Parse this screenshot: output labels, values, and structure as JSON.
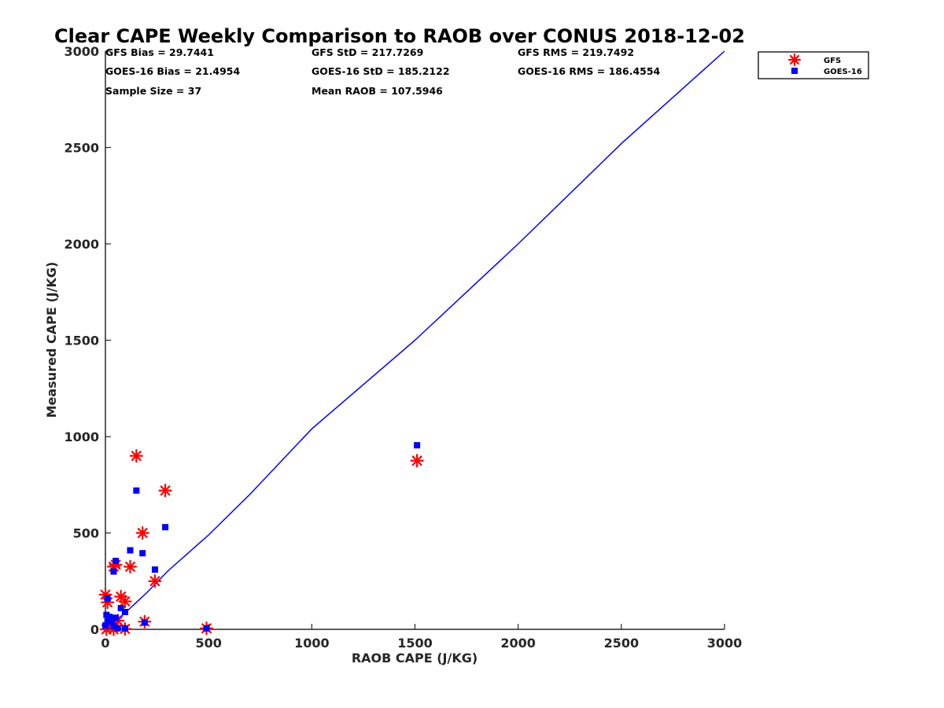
{
  "chart_data": {
    "type": "scatter",
    "title": "Clear CAPE Weekly Comparison to RAOB over CONUS 2018-12-02",
    "xlabel": "RAOB CAPE (J/KG)",
    "ylabel": "Measured CAPE (J/KG)",
    "xlim": [
      0,
      3000
    ],
    "ylim": [
      0,
      3000
    ],
    "xticks": [
      "0",
      "500",
      "1000",
      "1500",
      "2000",
      "2500",
      "3000"
    ],
    "yticks": [
      "0",
      "500",
      "1000",
      "1500",
      "2000",
      "2500",
      "3000"
    ],
    "grid": false,
    "legend_position": "top-right",
    "stats": [
      {
        "text": "GFS Bias = 29.7441"
      },
      {
        "text": "GFS StD = 217.7269"
      },
      {
        "text": "GFS RMS = 219.7492"
      },
      {
        "text": "GOES-16 Bias = 21.4954"
      },
      {
        "text": "GOES-16 StD = 185.2122"
      },
      {
        "text": "GOES-16 RMS = 186.4554"
      },
      {
        "text": "Sample Size = 37"
      },
      {
        "text": "Mean RAOB = 107.5946"
      }
    ],
    "series": [
      {
        "name": "GFS",
        "marker": "asterisk",
        "color": "#ff0000",
        "points": [
          [
            150,
            900
          ],
          [
            290,
            720
          ],
          [
            180,
            500
          ],
          [
            50,
            335
          ],
          [
            40,
            325
          ],
          [
            120,
            325
          ],
          [
            240,
            250
          ],
          [
            0,
            180
          ],
          [
            75,
            170
          ],
          [
            95,
            145
          ],
          [
            10,
            140
          ],
          [
            60,
            45
          ],
          [
            190,
            40
          ],
          [
            30,
            30
          ],
          [
            20,
            10
          ],
          [
            490,
            5
          ],
          [
            95,
            2
          ],
          [
            40,
            0
          ],
          [
            5,
            0
          ],
          [
            1510,
            875
          ]
        ]
      },
      {
        "name": "GOES-16",
        "marker": "square",
        "color": "#0000ff",
        "points": [
          [
            150,
            720
          ],
          [
            290,
            530
          ],
          [
            120,
            410
          ],
          [
            180,
            395
          ],
          [
            50,
            355
          ],
          [
            40,
            300
          ],
          [
            240,
            310
          ],
          [
            10,
            160
          ],
          [
            75,
            110
          ],
          [
            95,
            90
          ],
          [
            5,
            75
          ],
          [
            20,
            65
          ],
          [
            50,
            60
          ],
          [
            30,
            45
          ],
          [
            10,
            40
          ],
          [
            0,
            20
          ],
          [
            190,
            35
          ],
          [
            40,
            15
          ],
          [
            490,
            5
          ],
          [
            95,
            5
          ],
          [
            60,
            5
          ],
          [
            1510,
            955
          ]
        ]
      },
      {
        "name": "",
        "marker": "line",
        "color": "#0000ff",
        "points": [
          [
            0,
            0
          ],
          [
            100,
            90
          ],
          [
            200,
            190
          ],
          [
            300,
            300
          ],
          [
            500,
            490
          ],
          [
            700,
            700
          ],
          [
            1000,
            1040
          ],
          [
            1500,
            1500
          ],
          [
            2000,
            2000
          ],
          [
            2500,
            2520
          ],
          [
            3000,
            3000
          ]
        ]
      }
    ]
  }
}
